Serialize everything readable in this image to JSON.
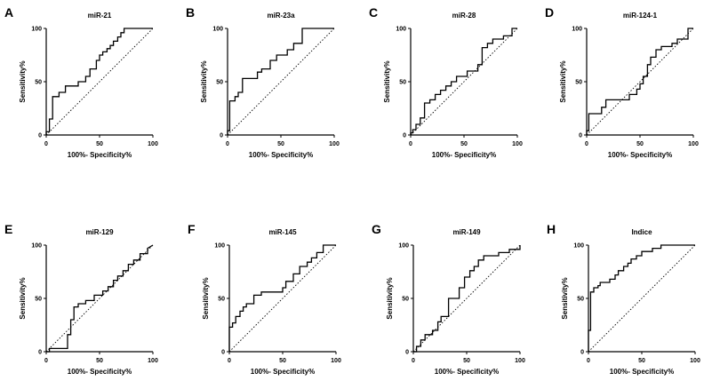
{
  "chart_data": [
    {
      "type": "line",
      "letter": "A",
      "title": "miR-21",
      "xlabel": "100%- Specificity%",
      "ylabel": "Sensitivity%",
      "xlim": [
        0,
        100
      ],
      "ylim": [
        0,
        100
      ],
      "ticks": [
        "0",
        "50",
        "100"
      ],
      "series": [
        {
          "name": "ROC",
          "x": [
            0,
            0,
            3,
            3,
            6,
            6,
            12,
            12,
            18,
            18,
            30,
            30,
            37,
            37,
            41,
            41,
            47,
            47,
            50,
            50,
            53,
            53,
            57,
            57,
            60,
            60,
            63,
            63,
            67,
            67,
            70,
            70,
            73,
            73,
            100
          ],
          "y": [
            0,
            3,
            3,
            15,
            15,
            36,
            36,
            40,
            40,
            46,
            46,
            50,
            50,
            55,
            55,
            62,
            62,
            70,
            70,
            75,
            75,
            78,
            78,
            81,
            81,
            84,
            84,
            88,
            88,
            92,
            92,
            96,
            96,
            100,
            100
          ]
        },
        {
          "name": "reference",
          "x": [
            0,
            100
          ],
          "y": [
            0,
            100
          ]
        }
      ]
    },
    {
      "type": "line",
      "letter": "B",
      "title": "miR-23a",
      "xlabel": "100%- Specificity%",
      "ylabel": "Sensitivity%",
      "xlim": [
        0,
        100
      ],
      "ylim": [
        0,
        100
      ],
      "ticks": [
        "0",
        "50",
        "100"
      ],
      "series": [
        {
          "name": "ROC",
          "x": [
            0,
            0,
            2,
            2,
            7,
            7,
            10,
            10,
            14,
            14,
            28,
            28,
            32,
            32,
            40,
            40,
            46,
            46,
            56,
            56,
            62,
            62,
            70,
            70,
            100
          ],
          "y": [
            0,
            4,
            4,
            32,
            32,
            36,
            36,
            40,
            40,
            53,
            53,
            59,
            59,
            62,
            62,
            70,
            70,
            75,
            75,
            80,
            80,
            86,
            86,
            100,
            100
          ]
        },
        {
          "name": "reference",
          "x": [
            0,
            100
          ],
          "y": [
            0,
            100
          ]
        }
      ]
    },
    {
      "type": "line",
      "letter": "C",
      "title": "miR-28",
      "xlabel": "100%- Specificity%",
      "ylabel": "Sensitivity%",
      "xlim": [
        0,
        100
      ],
      "ylim": [
        0,
        100
      ],
      "ticks": [
        "0",
        "50",
        "100"
      ],
      "series": [
        {
          "name": "ROC",
          "x": [
            0,
            0,
            2,
            2,
            5,
            5,
            9,
            9,
            13,
            13,
            18,
            18,
            23,
            23,
            28,
            28,
            33,
            33,
            38,
            38,
            43,
            43,
            53,
            53,
            63,
            63,
            67,
            67,
            72,
            72,
            77,
            77,
            87,
            87,
            95,
            95,
            100
          ],
          "y": [
            0,
            2,
            2,
            5,
            5,
            10,
            10,
            16,
            16,
            30,
            30,
            33,
            33,
            38,
            38,
            42,
            42,
            46,
            46,
            50,
            50,
            55,
            55,
            60,
            60,
            66,
            66,
            82,
            82,
            86,
            86,
            90,
            90,
            93,
            93,
            100,
            100
          ]
        },
        {
          "name": "reference",
          "x": [
            0,
            100
          ],
          "y": [
            0,
            100
          ]
        }
      ]
    },
    {
      "type": "line",
      "letter": "D",
      "title": "miR-124-1",
      "xlabel": "100%- Specificity%",
      "ylabel": "Sensitivity%",
      "xlim": [
        0,
        100
      ],
      "ylim": [
        0,
        100
      ],
      "ticks": [
        "0",
        "50",
        "100"
      ],
      "series": [
        {
          "name": "ROC",
          "x": [
            0,
            0,
            2,
            2,
            14,
            14,
            18,
            18,
            40,
            40,
            47,
            47,
            50,
            50,
            53,
            53,
            57,
            57,
            60,
            60,
            65,
            65,
            70,
            70,
            80,
            80,
            85,
            85,
            95,
            95,
            100
          ],
          "y": [
            0,
            4,
            4,
            20,
            20,
            26,
            26,
            33,
            33,
            38,
            38,
            43,
            43,
            48,
            48,
            55,
            55,
            66,
            66,
            73,
            73,
            80,
            80,
            83,
            83,
            86,
            86,
            90,
            90,
            100,
            100
          ]
        },
        {
          "name": "reference",
          "x": [
            0,
            100
          ],
          "y": [
            0,
            100
          ]
        }
      ]
    },
    {
      "type": "line",
      "letter": "E",
      "title": "miR-129",
      "xlabel": "100%- Specificity%",
      "ylabel": "Sensitivity%",
      "xlim": [
        0,
        100
      ],
      "ylim": [
        0,
        100
      ],
      "ticks": [
        "0",
        "50",
        "100"
      ],
      "series": [
        {
          "name": "ROC",
          "x": [
            0,
            0,
            3,
            3,
            20,
            20,
            23,
            23,
            26,
            26,
            30,
            30,
            37,
            37,
            45,
            45,
            53,
            53,
            58,
            58,
            63,
            63,
            67,
            67,
            72,
            72,
            77,
            77,
            82,
            82,
            88,
            88,
            95,
            95,
            100
          ],
          "y": [
            0,
            0,
            0,
            3,
            3,
            16,
            16,
            30,
            30,
            42,
            42,
            45,
            45,
            48,
            48,
            53,
            53,
            57,
            57,
            61,
            61,
            67,
            67,
            71,
            71,
            76,
            76,
            82,
            82,
            86,
            86,
            92,
            92,
            97,
            100
          ]
        },
        {
          "name": "reference",
          "x": [
            0,
            100
          ],
          "y": [
            0,
            100
          ]
        }
      ]
    },
    {
      "type": "line",
      "letter": "F",
      "title": "miR-145",
      "xlabel": "100%- Specificity%",
      "ylabel": "Sensitivity%",
      "xlim": [
        0,
        100
      ],
      "ylim": [
        0,
        100
      ],
      "ticks": [
        "0",
        "50",
        "100"
      ],
      "series": [
        {
          "name": "ROC",
          "x": [
            0,
            0,
            3,
            3,
            6,
            6,
            10,
            10,
            13,
            13,
            16,
            16,
            23,
            23,
            30,
            30,
            50,
            50,
            53,
            53,
            60,
            60,
            66,
            66,
            73,
            73,
            77,
            77,
            82,
            82,
            88,
            88,
            100
          ],
          "y": [
            0,
            23,
            23,
            27,
            27,
            33,
            33,
            38,
            38,
            42,
            42,
            45,
            45,
            53,
            53,
            56,
            56,
            60,
            60,
            66,
            66,
            73,
            73,
            80,
            80,
            84,
            84,
            88,
            88,
            93,
            93,
            100,
            100
          ]
        },
        {
          "name": "reference",
          "x": [
            0,
            100
          ],
          "y": [
            0,
            100
          ]
        }
      ]
    },
    {
      "type": "line",
      "letter": "G",
      "title": "miR-149",
      "xlabel": "100%- Specificity%",
      "ylabel": "Sensitivity%",
      "xlim": [
        0,
        100
      ],
      "ylim": [
        0,
        100
      ],
      "ticks": [
        "0",
        "50",
        "100"
      ],
      "series": [
        {
          "name": "ROC",
          "x": [
            0,
            0,
            3,
            3,
            7,
            7,
            11,
            11,
            18,
            18,
            23,
            23,
            26,
            26,
            33,
            33,
            43,
            43,
            48,
            48,
            53,
            53,
            57,
            57,
            61,
            61,
            66,
            66,
            80,
            80,
            90,
            90,
            100,
            100
          ],
          "y": [
            0,
            0,
            0,
            5,
            5,
            11,
            11,
            16,
            16,
            20,
            20,
            28,
            28,
            33,
            33,
            50,
            50,
            60,
            60,
            70,
            70,
            76,
            76,
            80,
            80,
            86,
            86,
            90,
            90,
            93,
            93,
            96,
            96,
            100
          ]
        },
        {
          "name": "reference",
          "x": [
            0,
            100
          ],
          "y": [
            0,
            100
          ]
        }
      ]
    },
    {
      "type": "line",
      "letter": "H",
      "title": "Indice",
      "xlabel": "100%- Specificity%",
      "ylabel": "Sensitivity%",
      "xlim": [
        0,
        100
      ],
      "ylim": [
        0,
        100
      ],
      "ticks": [
        "0",
        "50",
        "100"
      ],
      "series": [
        {
          "name": "ROC",
          "x": [
            0,
            0,
            2,
            2,
            5,
            5,
            9,
            9,
            11,
            11,
            20,
            20,
            25,
            25,
            28,
            28,
            33,
            33,
            37,
            37,
            40,
            40,
            45,
            45,
            50,
            50,
            60,
            60,
            68,
            68,
            100
          ],
          "y": [
            0,
            20,
            20,
            56,
            56,
            60,
            60,
            62,
            62,
            65,
            65,
            68,
            68,
            72,
            72,
            76,
            76,
            80,
            80,
            83,
            83,
            87,
            87,
            90,
            90,
            94,
            94,
            97,
            97,
            100,
            100
          ]
        },
        {
          "name": "reference",
          "x": [
            0,
            100
          ],
          "y": [
            0,
            100
          ]
        }
      ]
    }
  ]
}
